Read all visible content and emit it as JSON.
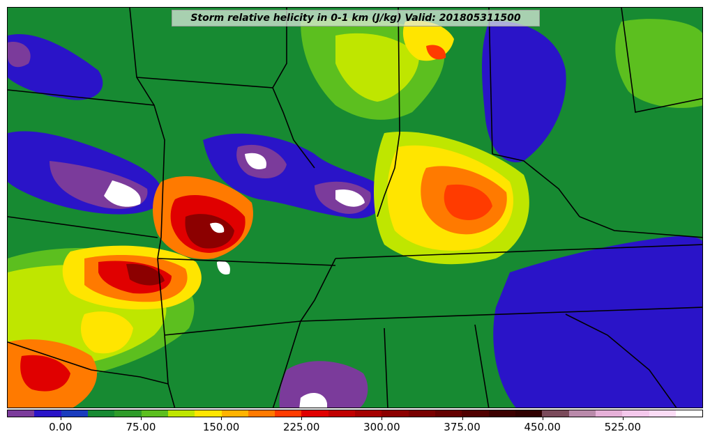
{
  "title": "Storm relative helicity in 0-1 km (J/kg) Valid: 201805311500",
  "colorbar": {
    "colors": [
      "#7b3b9b",
      "#2a14c8",
      "#1a3cbe",
      "#178a32",
      "#2f9c2a",
      "#5cbf1f",
      "#bfe600",
      "#ffe500",
      "#ffb300",
      "#ff7a00",
      "#ff3b00",
      "#e00000",
      "#c00000",
      "#a50000",
      "#8c0000",
      "#780000",
      "#640000",
      "#500000",
      "#3c0000",
      "#300000",
      "#7a4a5a",
      "#b98aaa",
      "#e6b0d8",
      "#f4c8ec",
      "#fbdcf5",
      "#ffffff"
    ],
    "labels": [
      "0.00",
      "75.00",
      "150.00",
      "225.00",
      "300.00",
      "375.00",
      "450.00",
      "525.00"
    ]
  },
  "legend_colors": {
    "background": "#178a32",
    "purple": "#7b3b9b",
    "blue": "#2a14c8",
    "green": "#2f9c2a",
    "light_green": "#5cbf1f",
    "lime": "#bfe600",
    "yellow": "#ffe500",
    "orange": "#ff7a00",
    "red": "#e00000",
    "dark_red": "#8c0000",
    "white": "#ffffff"
  }
}
